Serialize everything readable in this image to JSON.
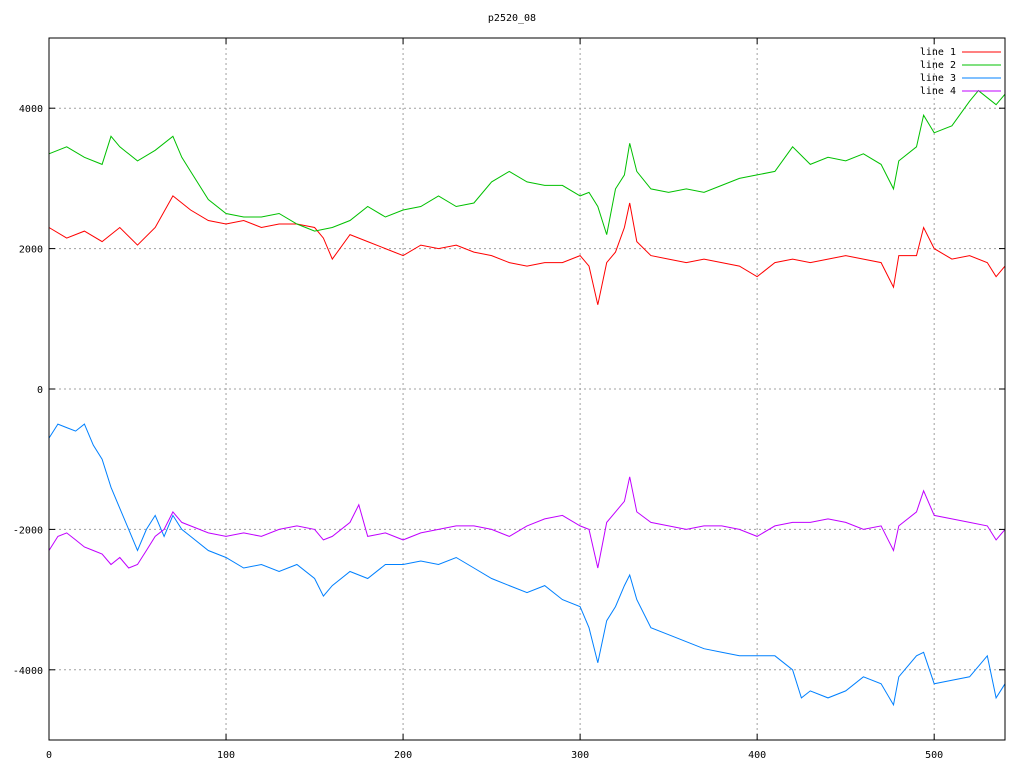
{
  "chart_data": {
    "type": "line",
    "title": "p2520_08",
    "xlabel": "",
    "ylabel": "",
    "xlim": [
      0,
      540
    ],
    "ylim": [
      -5000,
      5000
    ],
    "grid": true,
    "legend_position": "top-right",
    "x_ticks": [
      0,
      100,
      200,
      300,
      400,
      500
    ],
    "y_ticks": [
      4000,
      2000,
      0,
      -2000,
      -4000
    ],
    "x_tick_labels": [
      "0",
      "100",
      "200",
      "300",
      "400",
      "500"
    ],
    "y_tick_labels": [
      "4000",
      "2000",
      "0",
      "-2000",
      "-4000"
    ],
    "series": [
      {
        "name": "line 1",
        "color": "#ff0000",
        "x": [
          0,
          10,
          20,
          30,
          40,
          50,
          60,
          70,
          80,
          90,
          100,
          110,
          120,
          130,
          140,
          150,
          155,
          160,
          170,
          180,
          190,
          200,
          210,
          220,
          230,
          240,
          250,
          260,
          270,
          280,
          290,
          300,
          305,
          310,
          315,
          320,
          325,
          328,
          332,
          340,
          350,
          360,
          370,
          380,
          390,
          400,
          410,
          420,
          430,
          440,
          450,
          460,
          470,
          477,
          480,
          490,
          494,
          500,
          510,
          520,
          530,
          535,
          540
        ],
        "y": [
          2300,
          2150,
          2250,
          2100,
          2300,
          2050,
          2300,
          2750,
          2550,
          2400,
          2350,
          2400,
          2300,
          2350,
          2350,
          2300,
          2150,
          1850,
          2200,
          2100,
          2000,
          1900,
          2050,
          2000,
          2050,
          1950,
          1900,
          1800,
          1750,
          1800,
          1800,
          1900,
          1750,
          1200,
          1800,
          1950,
          2300,
          2650,
          2100,
          1900,
          1850,
          1800,
          1850,
          1800,
          1750,
          1600,
          1800,
          1850,
          1800,
          1850,
          1900,
          1850,
          1800,
          1450,
          1900,
          1900,
          2300,
          2000,
          1850,
          1900,
          1800,
          1600,
          1750
        ]
      },
      {
        "name": "line 2",
        "color": "#00c000",
        "x": [
          0,
          10,
          20,
          30,
          35,
          40,
          50,
          60,
          70,
          75,
          80,
          90,
          100,
          110,
          120,
          130,
          140,
          150,
          160,
          170,
          180,
          190,
          200,
          210,
          220,
          230,
          240,
          250,
          260,
          270,
          280,
          290,
          300,
          305,
          310,
          315,
          320,
          325,
          328,
          332,
          340,
          350,
          360,
          370,
          380,
          390,
          400,
          410,
          420,
          430,
          440,
          450,
          460,
          470,
          477,
          480,
          490,
          494,
          500,
          510,
          520,
          525,
          530,
          535,
          540
        ],
        "y": [
          3350,
          3450,
          3300,
          3200,
          3600,
          3450,
          3250,
          3400,
          3600,
          3300,
          3100,
          2700,
          2500,
          2450,
          2450,
          2500,
          2350,
          2250,
          2300,
          2400,
          2600,
          2450,
          2550,
          2600,
          2750,
          2600,
          2650,
          2950,
          3100,
          2950,
          2900,
          2900,
          2750,
          2800,
          2600,
          2200,
          2850,
          3050,
          3500,
          3100,
          2850,
          2800,
          2850,
          2800,
          2900,
          3000,
          3050,
          3100,
          3450,
          3200,
          3300,
          3250,
          3350,
          3200,
          2850,
          3250,
          3450,
          3900,
          3650,
          3750,
          4100,
          4250,
          4150,
          4050,
          4200
        ]
      },
      {
        "name": "line 3",
        "color": "#0080ff",
        "x": [
          0,
          5,
          10,
          15,
          20,
          25,
          30,
          35,
          40,
          45,
          50,
          55,
          60,
          65,
          70,
          75,
          80,
          90,
          100,
          110,
          120,
          130,
          140,
          150,
          155,
          160,
          170,
          180,
          190,
          200,
          210,
          220,
          230,
          240,
          250,
          260,
          270,
          280,
          290,
          300,
          305,
          310,
          315,
          320,
          325,
          328,
          332,
          340,
          350,
          360,
          370,
          380,
          390,
          400,
          410,
          420,
          425,
          430,
          440,
          450,
          460,
          470,
          477,
          480,
          490,
          494,
          500,
          510,
          520,
          530,
          535,
          540
        ],
        "y": [
          -700,
          -500,
          -550,
          -600,
          -500,
          -800,
          -1000,
          -1400,
          -1700,
          -2000,
          -2300,
          -2000,
          -1800,
          -2100,
          -1800,
          -2000,
          -2100,
          -2300,
          -2400,
          -2550,
          -2500,
          -2600,
          -2500,
          -2700,
          -2950,
          -2800,
          -2600,
          -2700,
          -2500,
          -2500,
          -2450,
          -2500,
          -2400,
          -2550,
          -2700,
          -2800,
          -2900,
          -2800,
          -3000,
          -3100,
          -3400,
          -3900,
          -3300,
          -3100,
          -2800,
          -2650,
          -3000,
          -3400,
          -3500,
          -3600,
          -3700,
          -3750,
          -3800,
          -3800,
          -3800,
          -4000,
          -4400,
          -4300,
          -4400,
          -4300,
          -4100,
          -4200,
          -4500,
          -4100,
          -3800,
          -3750,
          -4200,
          -4150,
          -4100,
          -3800,
          -4400,
          -4200
        ]
      },
      {
        "name": "line 4",
        "color": "#c000ff",
        "x": [
          0,
          5,
          10,
          15,
          20,
          25,
          30,
          35,
          40,
          45,
          50,
          55,
          60,
          65,
          70,
          75,
          80,
          90,
          100,
          110,
          120,
          130,
          140,
          150,
          155,
          160,
          170,
          175,
          180,
          190,
          200,
          210,
          220,
          230,
          240,
          250,
          260,
          270,
          280,
          290,
          300,
          305,
          310,
          315,
          320,
          325,
          328,
          332,
          340,
          350,
          360,
          370,
          380,
          390,
          400,
          410,
          420,
          430,
          440,
          450,
          460,
          470,
          477,
          480,
          490,
          494,
          500,
          510,
          520,
          530,
          535,
          540
        ],
        "y": [
          -2300,
          -2100,
          -2050,
          -2150,
          -2250,
          -2300,
          -2350,
          -2500,
          -2400,
          -2550,
          -2500,
          -2300,
          -2100,
          -2000,
          -1750,
          -1900,
          -1950,
          -2050,
          -2100,
          -2050,
          -2100,
          -2000,
          -1950,
          -2000,
          -2150,
          -2100,
          -1900,
          -1650,
          -2100,
          -2050,
          -2150,
          -2050,
          -2000,
          -1950,
          -1950,
          -2000,
          -2100,
          -1950,
          -1850,
          -1800,
          -1950,
          -2000,
          -2550,
          -1900,
          -1750,
          -1600,
          -1250,
          -1750,
          -1900,
          -1950,
          -2000,
          -1950,
          -1950,
          -2000,
          -2100,
          -1950,
          -1900,
          -1900,
          -1850,
          -1900,
          -2000,
          -1950,
          -2300,
          -1950,
          -1750,
          -1450,
          -1800,
          -1850,
          -1900,
          -1950,
          -2150,
          -2000
        ]
      }
    ]
  }
}
